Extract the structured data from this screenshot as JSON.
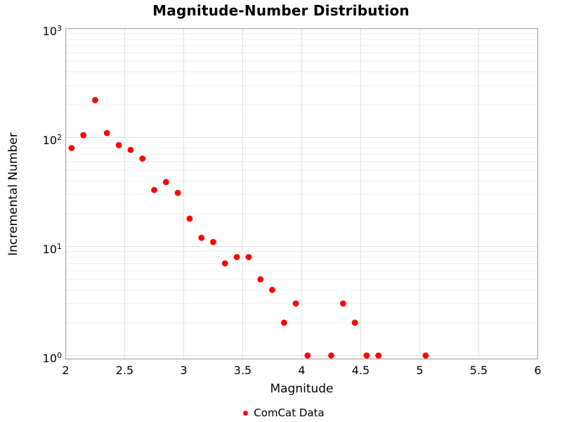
{
  "chart_data": {
    "type": "scatter",
    "title": "Magnitude-Number Distribution",
    "xlabel": "Magnitude",
    "ylabel": "Incremental Number",
    "x_ticks": [
      2,
      2.5,
      3,
      3.5,
      4,
      4.5,
      5,
      5.5,
      6
    ],
    "x_tick_labels": [
      "2",
      "2.5",
      "3",
      "3.5",
      "4",
      "4.5",
      "5",
      "5.5",
      "6"
    ],
    "y_scale": "log",
    "y_tick_exponents": [
      0,
      1,
      2,
      3
    ],
    "y_tick_labels": [
      "10°",
      "10¹",
      "10²",
      "10³"
    ],
    "xlim": [
      2,
      6
    ],
    "ylim": [
      0.928,
      1000
    ],
    "grid": true,
    "legend": [
      {
        "label": "ComCat Data",
        "marker": "circle",
        "color": "#ff0000"
      }
    ],
    "legend_position": "lower center outside",
    "series": [
      {
        "name": "ComCat Data",
        "color": "#ff0000",
        "x": [
          2.05,
          2.15,
          2.25,
          2.35,
          2.45,
          2.55,
          2.65,
          2.75,
          2.85,
          2.95,
          3.05,
          3.15,
          3.25,
          3.35,
          3.45,
          3.55,
          3.65,
          3.75,
          3.85,
          3.95,
          4.05,
          4.25,
          4.35,
          4.45,
          4.55,
          4.65,
          5.05
        ],
        "y": [
          80,
          105,
          220,
          110,
          85,
          77,
          64,
          33,
          39,
          31,
          18,
          12,
          11,
          7,
          8,
          8,
          5,
          4,
          2,
          3,
          1,
          1,
          3,
          2,
          1,
          1,
          1
        ]
      }
    ],
    "colors": {
      "point": "#ff0000",
      "spine": "#a6a6a6",
      "major_grid": "#e0e0e0",
      "minor_grid": "#eeeeee",
      "background": "#ffffff",
      "text": "#000000"
    }
  }
}
